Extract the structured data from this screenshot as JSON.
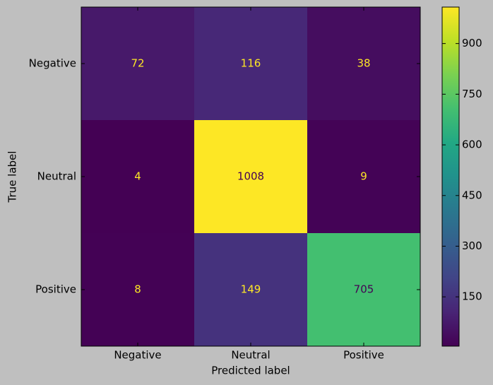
{
  "chart_data": {
    "type": "heatmap",
    "x_categories": [
      "Negative",
      "Neutral",
      "Positive"
    ],
    "y_categories": [
      "Negative",
      "Neutral",
      "Positive"
    ],
    "values": [
      [
        72,
        116,
        38
      ],
      [
        4,
        1008,
        9
      ],
      [
        8,
        149,
        705
      ]
    ],
    "xlabel": "Predicted label",
    "ylabel": "True label",
    "colormap": "viridis",
    "zlim": [
      4,
      1008
    ],
    "zticks": [
      150,
      300,
      450,
      600,
      750,
      900
    ]
  }
}
